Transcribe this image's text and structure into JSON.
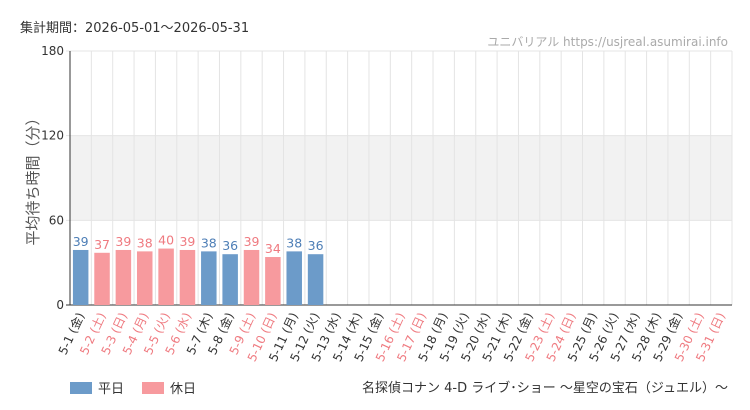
{
  "header": {
    "period": "集計期間：2026-05-01〜2026-05-31",
    "watermark": "ユニバリアル  https://usjreal.asumirai.info"
  },
  "legend": {
    "weekday_label": "平日",
    "holiday_label": "休日"
  },
  "caption": "名探偵コナン 4-D ライブ･ショー 〜星空の宝石（ジュエル）〜",
  "colors": {
    "weekday": "#6c9bc9",
    "holiday": "#f79a9e",
    "weekday_text": "#4d7eb6",
    "holiday_text": "#ef7a80",
    "band": "#f2f2f2",
    "grid": "#e4e4e4",
    "axis": "#333333"
  },
  "chart_data": {
    "type": "bar",
    "ylabel": "平均待ち時間（分）",
    "ylim": [
      0,
      180
    ],
    "yticks": [
      0,
      60,
      120,
      180
    ],
    "shaded_band": [
      60,
      120
    ],
    "categories": [
      "5-1 (金)",
      "5-2 (土)",
      "5-3 (日)",
      "5-4 (月)",
      "5-5 (火)",
      "5-6 (水)",
      "5-7 (木)",
      "5-8 (金)",
      "5-9 (土)",
      "5-10 (日)",
      "5-11 (月)",
      "5-12 (火)",
      "5-13 (水)",
      "5-14 (木)",
      "5-15 (金)",
      "5-16 (土)",
      "5-17 (日)",
      "5-18 (月)",
      "5-19 (火)",
      "5-20 (水)",
      "5-21 (木)",
      "5-22 (金)",
      "5-23 (土)",
      "5-24 (日)",
      "5-25 (月)",
      "5-26 (火)",
      "5-27 (水)",
      "5-28 (木)",
      "5-29 (金)",
      "5-30 (土)",
      "5-31 (日)"
    ],
    "day_type": [
      "weekday",
      "holiday",
      "holiday",
      "holiday",
      "holiday",
      "holiday",
      "weekday",
      "weekday",
      "holiday",
      "holiday",
      "weekday",
      "weekday",
      "weekday",
      "weekday",
      "weekday",
      "holiday",
      "holiday",
      "weekday",
      "weekday",
      "weekday",
      "weekday",
      "weekday",
      "holiday",
      "holiday",
      "weekday",
      "weekday",
      "weekday",
      "weekday",
      "weekday",
      "holiday",
      "holiday"
    ],
    "values": [
      39,
      37,
      39,
      38,
      40,
      39,
      38,
      36,
      39,
      34,
      38,
      36,
      null,
      null,
      null,
      null,
      null,
      null,
      null,
      null,
      null,
      null,
      null,
      null,
      null,
      null,
      null,
      null,
      null,
      null,
      null
    ]
  }
}
